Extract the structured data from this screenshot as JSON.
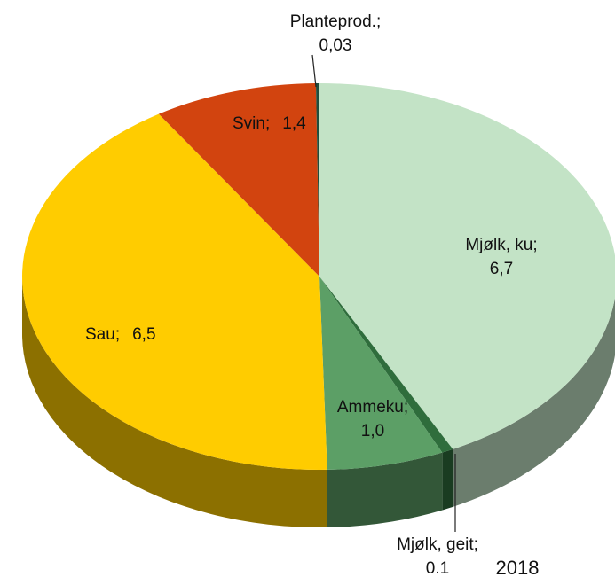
{
  "chart_data": {
    "type": "pie3d",
    "categories": [
      "Mjølk, ku",
      "Mjølk, geit",
      "Ammeku",
      "Sau",
      "Svin",
      "Planteprod."
    ],
    "values": [
      6.7,
      0.1,
      1.0,
      6.5,
      1.4,
      0.03
    ],
    "value_labels": [
      "6,7",
      "0.1",
      "1,0",
      "6,5",
      "1,4",
      "0,03"
    ],
    "label_separator": ";",
    "colors": [
      "#c3e3c6",
      "#2f6d3c",
      "#5c9f66",
      "#ffcc00",
      "#d2440f",
      "#1f4e3d"
    ],
    "annotation": "2018"
  }
}
